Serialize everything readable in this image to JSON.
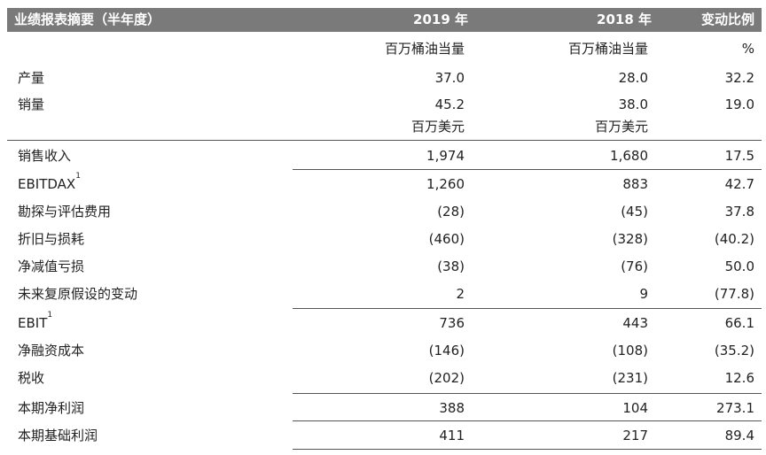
{
  "header": {
    "title": "业绩报表摘要（半年度）",
    "col_2019": "2019 年",
    "col_2018": "2018 年",
    "col_change": "变动比例"
  },
  "units": {
    "boe_2019": "百万桶油当量",
    "boe_2018": "百万桶油当量",
    "percent": "%",
    "usd_2019": "百万美元",
    "usd_2018": "百万美元"
  },
  "rows": [
    {
      "label": "产量",
      "sup": "",
      "v2019": "37.0",
      "v2018": "28.0",
      "chg": "32.2"
    },
    {
      "label": "销量",
      "sup": "",
      "v2019": "45.2",
      "v2018": "38.0",
      "chg": "19.0"
    },
    {
      "label": "销售收入",
      "sup": "",
      "v2019": "1,974",
      "v2018": "1,680",
      "chg": "17.5"
    },
    {
      "label": "EBITDAX",
      "sup": "1",
      "v2019": "1,260",
      "v2018": "883",
      "chg": "42.7"
    },
    {
      "label": "勘探与评估费用",
      "sup": "",
      "v2019": "(28)",
      "v2018": "(45)",
      "chg": "37.8"
    },
    {
      "label": "折旧与损耗",
      "sup": "",
      "v2019": "(460)",
      "v2018": "(328)",
      "chg": "(40.2)"
    },
    {
      "label": "净减值亏损",
      "sup": "",
      "v2019": "(38)",
      "v2018": "(76)",
      "chg": "50.0"
    },
    {
      "label": "未来复原假设的变动",
      "sup": "",
      "v2019": "2",
      "v2018": "9",
      "chg": "(77.8)"
    },
    {
      "label": "EBIT",
      "sup": "1",
      "v2019": "736",
      "v2018": "443",
      "chg": "66.1"
    },
    {
      "label": "净融资成本",
      "sup": "",
      "v2019": "(146)",
      "v2018": "(108)",
      "chg": "(35.2)"
    },
    {
      "label": "税收",
      "sup": "",
      "v2019": "(202)",
      "v2018": "(231)",
      "chg": "12.6"
    },
    {
      "label": "本期净利润",
      "sup": "",
      "v2019": "388",
      "v2018": "104",
      "chg": "273.1"
    },
    {
      "label": "本期基础利润",
      "sup": "",
      "v2019": "411",
      "v2018": "217",
      "chg": "89.4"
    }
  ]
}
